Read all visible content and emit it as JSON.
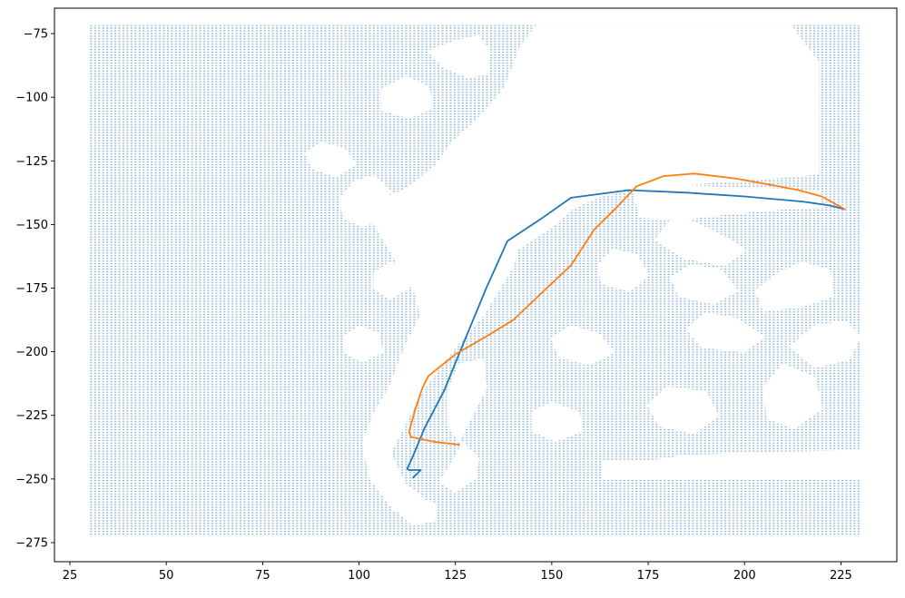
{
  "chart_data": {
    "type": "scatter",
    "title": "",
    "xlabel": "",
    "ylabel": "",
    "xlim": [
      21,
      239.5
    ],
    "ylim": [
      -282.5,
      -65
    ],
    "xticks": [
      25,
      50,
      75,
      100,
      125,
      150,
      175,
      200,
      225
    ],
    "yticks": [
      -75,
      -100,
      -125,
      -150,
      -175,
      -200,
      -225,
      -250,
      -275
    ],
    "xtick_labels": [
      "25",
      "50",
      "75",
      "100",
      "125",
      "150",
      "175",
      "200",
      "225"
    ],
    "ytick_labels": [
      "−75",
      "−100",
      "−125",
      "−150",
      "−175",
      "−200",
      "−225",
      "−250",
      "−275"
    ],
    "grid": false,
    "scatter": {
      "color": "#1f77b4",
      "marker_size": "tiny",
      "x_range": [
        30,
        230
      ],
      "y_range": [
        -272,
        -72
      ],
      "spacing": 1.05,
      "coverage": "dense regular grid of points, with empty (white) regions"
    },
    "empty_regions": [
      {
        "name": "main white channel",
        "points": [
          [
            120,
            -262
          ],
          [
            112,
            -252
          ],
          [
            108,
            -240
          ],
          [
            113,
            -225
          ],
          [
            117,
            -214
          ],
          [
            123,
            -202
          ],
          [
            126,
            -196
          ],
          [
            132,
            -186
          ],
          [
            136,
            -176
          ],
          [
            140,
            -166
          ],
          [
            141,
            -160
          ],
          [
            145,
            -156
          ],
          [
            150,
            -151
          ],
          [
            155,
            -144
          ],
          [
            162,
            -139
          ],
          [
            171,
            -136
          ],
          [
            178,
            -135
          ],
          [
            184,
            -134
          ],
          [
            195,
            -133
          ],
          [
            212,
            -131
          ],
          [
            219,
            -130
          ],
          [
            219,
            -86
          ],
          [
            212,
            -72
          ],
          [
            146,
            -72
          ],
          [
            142,
            -80
          ],
          [
            138,
            -96
          ],
          [
            133,
            -105
          ],
          [
            130,
            -110
          ],
          [
            124,
            -118
          ],
          [
            120,
            -127
          ],
          [
            115,
            -133
          ],
          [
            111,
            -137
          ],
          [
            106,
            -140
          ],
          [
            103,
            -144
          ],
          [
            104,
            -150
          ],
          [
            108,
            -160
          ],
          [
            115,
            -178
          ],
          [
            116,
            -186
          ],
          [
            112,
            -198
          ],
          [
            108,
            -214
          ],
          [
            104,
            -224
          ],
          [
            101,
            -236
          ],
          [
            103,
            -250
          ],
          [
            109,
            -262
          ],
          [
            115,
            -266
          ]
        ]
      },
      {
        "name": "lower-right white area",
        "points": [
          [
            230,
            -239
          ],
          [
            200,
            -240
          ],
          [
            184,
            -241
          ],
          [
            176,
            -243
          ],
          [
            163,
            -243
          ],
          [
            163,
            -250
          ],
          [
            230,
            -250
          ]
        ]
      },
      {
        "name": "bay near east channel",
        "points": [
          [
            171,
            -136
          ],
          [
            173,
            -147
          ],
          [
            183,
            -148
          ],
          [
            194,
            -146
          ],
          [
            208,
            -144
          ],
          [
            220,
            -143
          ],
          [
            219,
            -137
          ],
          [
            204,
            -136
          ],
          [
            183,
            -135
          ]
        ]
      },
      {
        "name": "upper-left cut",
        "points": [
          [
            118,
            -82
          ],
          [
            122,
            -88
          ],
          [
            128,
            -92
          ],
          [
            133,
            -91
          ],
          [
            134,
            -82
          ],
          [
            131,
            -76
          ],
          [
            125,
            -78
          ]
        ]
      },
      {
        "name": "left-channel blob",
        "points": [
          [
            99,
            -133
          ],
          [
            104,
            -131
          ],
          [
            108,
            -137
          ],
          [
            106,
            -146
          ],
          [
            101,
            -151
          ],
          [
            96,
            -147
          ],
          [
            95,
            -140
          ]
        ]
      },
      {
        "name": "south bay",
        "points": [
          [
            127,
            -236
          ],
          [
            124,
            -244
          ],
          [
            121,
            -251
          ],
          [
            125,
            -255
          ],
          [
            130,
            -250
          ],
          [
            131,
            -242
          ]
        ]
      },
      {
        "name": "lower channel notch",
        "points": [
          [
            132,
            -203
          ],
          [
            133,
            -214
          ],
          [
            129,
            -226
          ],
          [
            126,
            -235
          ],
          [
            123,
            -229
          ],
          [
            123,
            -216
          ],
          [
            126,
            -205
          ]
        ]
      },
      {
        "name": "east blob 1",
        "points": [
          [
            182,
            -146
          ],
          [
            188,
            -150
          ],
          [
            196,
            -156
          ],
          [
            200,
            -160
          ],
          [
            195,
            -166
          ],
          [
            184,
            -163
          ],
          [
            177,
            -156
          ]
        ]
      },
      {
        "name": "east blob 2",
        "points": [
          [
            215,
            -165
          ],
          [
            222,
            -168
          ],
          [
            223,
            -178
          ],
          [
            215,
            -182
          ],
          [
            205,
            -184
          ],
          [
            203,
            -176
          ],
          [
            209,
            -169
          ]
        ]
      },
      {
        "name": "east blob 3",
        "points": [
          [
            190,
            -185
          ],
          [
            198,
            -187
          ],
          [
            205,
            -194
          ],
          [
            200,
            -200
          ],
          [
            189,
            -198
          ],
          [
            185,
            -191
          ]
        ]
      },
      {
        "name": "east blob 4",
        "points": [
          [
            218,
            -190
          ],
          [
            226,
            -188
          ],
          [
            230,
            -194
          ],
          [
            227,
            -203
          ],
          [
            218,
            -206
          ],
          [
            212,
            -198
          ]
        ]
      },
      {
        "name": "east blob 5",
        "points": [
          [
            166,
            -160
          ],
          [
            172,
            -162
          ],
          [
            175,
            -170
          ],
          [
            170,
            -176
          ],
          [
            163,
            -173
          ],
          [
            162,
            -166
          ]
        ]
      },
      {
        "name": "east blob 6",
        "points": [
          [
            210,
            -205
          ],
          [
            218,
            -210
          ],
          [
            220,
            -222
          ],
          [
            213,
            -230
          ],
          [
            206,
            -226
          ],
          [
            205,
            -214
          ]
        ]
      },
      {
        "name": "east blob 7",
        "points": [
          [
            180,
            -214
          ],
          [
            190,
            -216
          ],
          [
            193,
            -225
          ],
          [
            187,
            -232
          ],
          [
            178,
            -229
          ],
          [
            175,
            -221
          ]
        ]
      },
      {
        "name": "east blob 8",
        "points": [
          [
            155,
            -190
          ],
          [
            162,
            -193
          ],
          [
            166,
            -200
          ],
          [
            160,
            -205
          ],
          [
            152,
            -202
          ],
          [
            150,
            -195
          ]
        ]
      },
      {
        "name": "east blob 9",
        "points": [
          [
            186,
            -166
          ],
          [
            194,
            -168
          ],
          [
            198,
            -176
          ],
          [
            192,
            -181
          ],
          [
            183,
            -178
          ],
          [
            181,
            -171
          ]
        ]
      },
      {
        "name": "east blob 10",
        "points": [
          [
            150,
            -220
          ],
          [
            157,
            -224
          ],
          [
            158,
            -231
          ],
          [
            151,
            -235
          ],
          [
            145,
            -231
          ],
          [
            145,
            -224
          ]
        ]
      },
      {
        "name": "mid-left blob 1",
        "points": [
          [
            112,
            -92
          ],
          [
            118,
            -96
          ],
          [
            119,
            -104
          ],
          [
            113,
            -108
          ],
          [
            106,
            -105
          ],
          [
            106,
            -97
          ]
        ]
      },
      {
        "name": "mid-left blob 2",
        "points": [
          [
            90,
            -118
          ],
          [
            96,
            -120
          ],
          [
            99,
            -126
          ],
          [
            94,
            -131
          ],
          [
            88,
            -128
          ],
          [
            86,
            -122
          ]
        ]
      },
      {
        "name": "mid-left blob 3",
        "points": [
          [
            120,
            -140
          ],
          [
            126,
            -143
          ],
          [
            127,
            -150
          ],
          [
            121,
            -154
          ],
          [
            116,
            -150
          ],
          [
            115,
            -144
          ]
        ]
      },
      {
        "name": "mid-left blob 4",
        "points": [
          [
            100,
            -190
          ],
          [
            105,
            -193
          ],
          [
            106,
            -200
          ],
          [
            101,
            -204
          ],
          [
            96,
            -200
          ],
          [
            96,
            -194
          ]
        ]
      },
      {
        "name": "mid-left blob 5",
        "points": [
          [
            108,
            -165
          ],
          [
            113,
            -168
          ],
          [
            113,
            -175
          ],
          [
            108,
            -179
          ],
          [
            104,
            -175
          ],
          [
            104,
            -169
          ]
        ]
      },
      {
        "name": "lower-left blob",
        "points": [
          [
            116,
            -258
          ],
          [
            120,
            -260
          ],
          [
            120,
            -266
          ],
          [
            114,
            -268
          ],
          [
            111,
            -264
          ],
          [
            112,
            -260
          ]
        ]
      }
    ],
    "series": [
      {
        "color": "#1f77b4",
        "x": [
          114,
          116,
          113,
          112.5,
          114,
          117,
          122,
          127,
          133,
          138.5,
          147,
          155,
          170,
          185,
          200,
          215,
          222,
          226
        ],
        "y": [
          -249.5,
          -246.5,
          -246.5,
          -246,
          -241,
          -230,
          -215.5,
          -197,
          -175,
          -156.5,
          -148,
          -139.5,
          -136.5,
          -137.5,
          -139,
          -141,
          -142.5,
          -144
        ]
      },
      {
        "color": "#ff7f0e",
        "x": [
          126,
          120,
          113.5,
          113,
          114.5,
          116.5,
          118,
          125,
          133,
          140,
          148,
          155,
          161,
          167,
          172,
          179,
          187,
          198,
          207,
          214,
          220,
          226
        ],
        "y": [
          -236.5,
          -235.5,
          -233.5,
          -231.5,
          -223,
          -214,
          -209.5,
          -201,
          -194,
          -187.5,
          -176,
          -166,
          -152,
          -143,
          -135,
          -131,
          -130,
          -132,
          -134.5,
          -136.5,
          -139,
          -144
        ]
      }
    ]
  }
}
